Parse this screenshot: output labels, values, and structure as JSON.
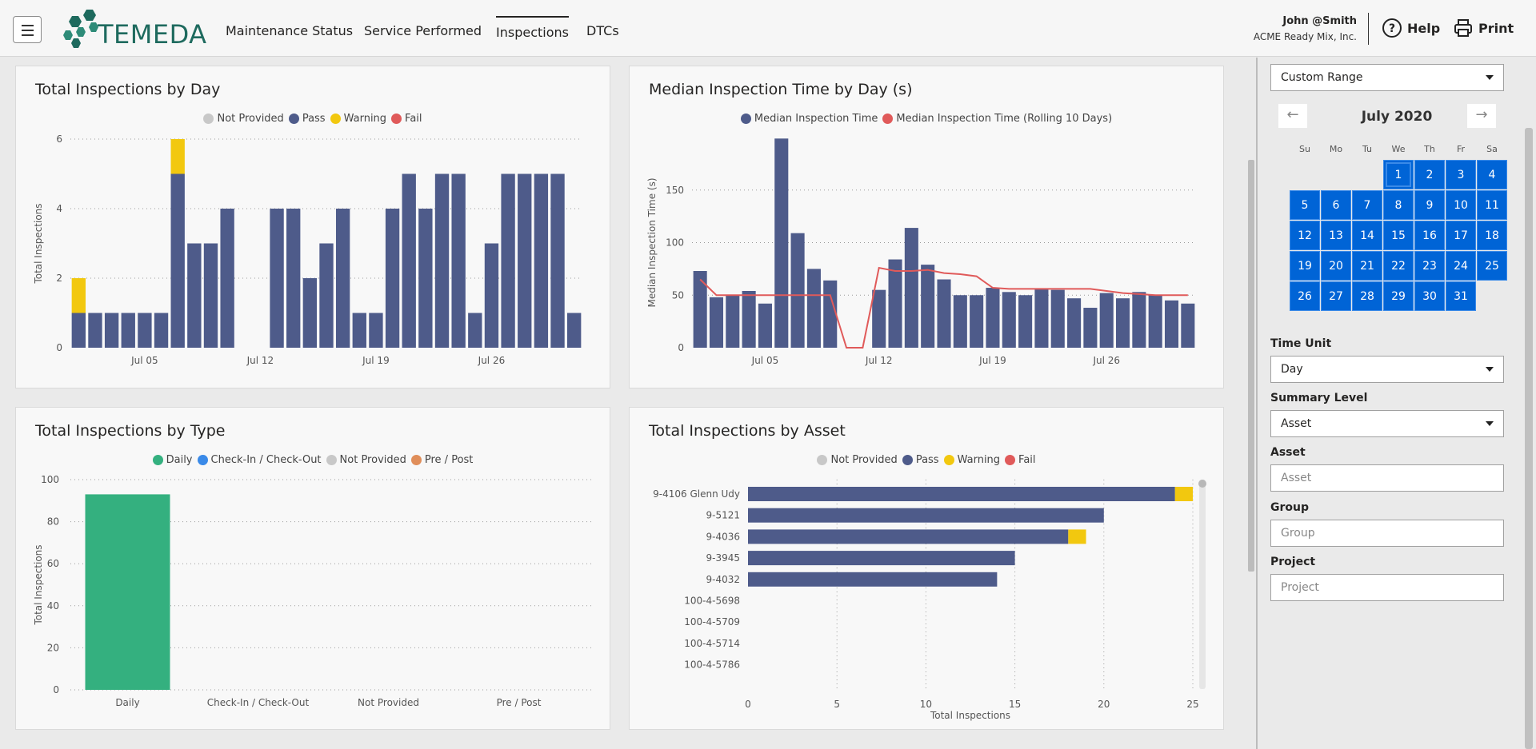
{
  "app": {
    "logo_text": "TEMEDA",
    "nav": [
      "Maintenance Status",
      "Service Performed",
      "Inspections",
      "DTCs"
    ],
    "active_nav": "Inspections",
    "user_name": "John @Smith",
    "user_company": "ACME Ready Mix, Inc.",
    "help_label": "Help",
    "print_label": "Print"
  },
  "colors": {
    "pass": "#4e5b8a",
    "warning": "#f2c80f",
    "fail": "#e05a5a",
    "not_provided": "#c8c8c8",
    "daily": "#34b07f",
    "checkin": "#3a8ae8",
    "prepost": "#e08e5a",
    "line": "#e05a5a",
    "calendar_selected": "#0064d6"
  },
  "sidebar": {
    "date_range_value": "Custom Range",
    "calendar_month": "July 2020",
    "prev_icon": "arrow-left-icon",
    "next_icon": "arrow-right-icon",
    "weekdays": [
      "Su",
      "Mo",
      "Tu",
      "We",
      "Th",
      "Fr",
      "Sa"
    ],
    "days": [
      "1",
      "2",
      "3",
      "4",
      "5",
      "6",
      "7",
      "8",
      "9",
      "10",
      "11",
      "12",
      "13",
      "14",
      "15",
      "16",
      "17",
      "18",
      "19",
      "20",
      "21",
      "22",
      "23",
      "24",
      "25",
      "26",
      "27",
      "28",
      "29",
      "30",
      "31"
    ],
    "time_unit_label": "Time Unit",
    "time_unit_value": "Day",
    "summary_level_label": "Summary Level",
    "summary_level_value": "Asset",
    "asset_label": "Asset",
    "asset_placeholder": "Asset",
    "group_label": "Group",
    "group_placeholder": "Group",
    "project_label": "Project",
    "project_placeholder": "Project"
  },
  "chart_data": [
    {
      "id": "total-by-day",
      "type": "bar",
      "title": "Total Inspections by Day",
      "legend": [
        "Not Provided",
        "Pass",
        "Warning",
        "Fail"
      ],
      "ylabel": "Total Inspections",
      "ylim": [
        0,
        6
      ],
      "yticks": [
        0,
        2,
        4,
        6
      ],
      "xticks": [
        {
          "label": "Jul 05",
          "day": 5
        },
        {
          "label": "Jul 12",
          "day": 12
        },
        {
          "label": "Jul 19",
          "day": 19
        },
        {
          "label": "Jul 26",
          "day": 26
        }
      ],
      "days": [
        1,
        2,
        3,
        4,
        5,
        6,
        7,
        8,
        9,
        10,
        11,
        12,
        13,
        14,
        15,
        16,
        17,
        18,
        19,
        20,
        21,
        22,
        23,
        24,
        25,
        26,
        27,
        28,
        29,
        30,
        31
      ],
      "series": [
        {
          "name": "Pass",
          "values": [
            1,
            1,
            1,
            1,
            1,
            1,
            5,
            3,
            3,
            4,
            0,
            0,
            4,
            4,
            2,
            3,
            4,
            1,
            1,
            4,
            5,
            4,
            5,
            5,
            1,
            3,
            5,
            5,
            5,
            5,
            1
          ]
        },
        {
          "name": "Warning",
          "values": [
            1,
            0,
            0,
            0,
            0,
            0,
            1,
            0,
            0,
            0,
            0,
            0,
            0,
            0,
            0,
            0,
            0,
            0,
            0,
            0,
            0,
            0,
            0,
            0,
            0,
            0,
            0,
            0,
            0,
            0,
            0
          ]
        }
      ]
    },
    {
      "id": "median-by-day",
      "type": "bar",
      "title": "Median Inspection Time by Day (s)",
      "legend": [
        "Median Inspection Time",
        "Median Inspection Time (Rolling 10 Days)"
      ],
      "ylabel": "Median Inspection Time (s)",
      "ylim": [
        0,
        200
      ],
      "yticks": [
        0,
        50,
        100,
        150
      ],
      "xticks": [
        {
          "label": "Jul 05",
          "day": 5
        },
        {
          "label": "Jul 12",
          "day": 12
        },
        {
          "label": "Jul 19",
          "day": 19
        },
        {
          "label": "Jul 26",
          "day": 26
        }
      ],
      "days": [
        1,
        2,
        3,
        4,
        5,
        6,
        7,
        8,
        9,
        10,
        11,
        12,
        13,
        14,
        15,
        16,
        17,
        18,
        19,
        20,
        21,
        22,
        23,
        24,
        25,
        26,
        27,
        28,
        29,
        30,
        31
      ],
      "series": [
        {
          "name": "Median Inspection Time",
          "values": [
            73,
            48,
            50,
            54,
            42,
            199,
            109,
            75,
            64,
            0,
            0,
            55,
            84,
            114,
            79,
            65,
            50,
            50,
            57,
            53,
            50,
            56,
            55,
            47,
            38,
            52,
            47,
            53,
            50,
            45,
            42
          ]
        },
        {
          "name": "Median Inspection Time (Rolling 10 Days)",
          "values": [
            65,
            50,
            50,
            50,
            50,
            50,
            50,
            50,
            50,
            0,
            0,
            76,
            73,
            73,
            74,
            71,
            70,
            68,
            57,
            56,
            56,
            56,
            56,
            56,
            56,
            54,
            52,
            51,
            50,
            50,
            50
          ]
        }
      ]
    },
    {
      "id": "total-by-type",
      "type": "bar",
      "title": "Total Inspections by Type",
      "legend": [
        "Daily",
        "Check-In / Check-Out",
        "Not Provided",
        "Pre / Post"
      ],
      "ylabel": "Total Inspections",
      "ylim": [
        0,
        100
      ],
      "yticks": [
        0,
        20,
        40,
        60,
        80,
        100
      ],
      "categories": [
        "Daily",
        "Check-In / Check-Out",
        "Not Provided",
        "Pre / Post"
      ],
      "values": [
        93,
        0,
        0,
        0
      ]
    },
    {
      "id": "total-by-asset",
      "type": "bar",
      "orientation": "horizontal",
      "title": "Total Inspections by Asset",
      "legend": [
        "Not Provided",
        "Pass",
        "Warning",
        "Fail"
      ],
      "xlabel": "Total Inspections",
      "xlim": [
        0,
        25
      ],
      "xticks": [
        0,
        5,
        10,
        15,
        20,
        25
      ],
      "categories": [
        "9-4106 Glenn Udy",
        "9-5121",
        "9-4036",
        "9-3945",
        "9-4032",
        "100-4-5698",
        "100-4-5709",
        "100-4-5714",
        "100-4-5786"
      ],
      "series": [
        {
          "name": "Pass",
          "values": [
            24,
            20,
            18,
            15,
            14,
            0,
            0,
            0,
            0
          ]
        },
        {
          "name": "Warning",
          "values": [
            1,
            0,
            1,
            0,
            0,
            0,
            0,
            0,
            0
          ]
        }
      ]
    }
  ]
}
